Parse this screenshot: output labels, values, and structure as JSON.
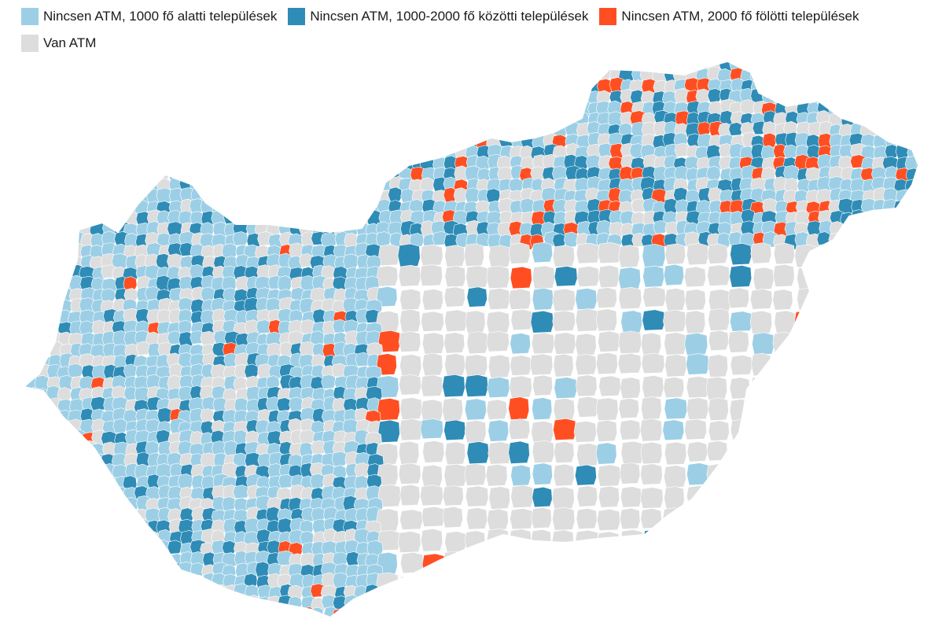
{
  "legend": {
    "items": [
      {
        "label": "Nincsen ATM, 1000 fő alatti települések",
        "color": "#9ccfe6"
      },
      {
        "label": "Nincsen ATM, 1000-2000 fő közötti települések",
        "color": "#2f8cb6"
      },
      {
        "label": "Nincsen ATM, 2000 fő fölötti települések",
        "color": "#ff4f22"
      },
      {
        "label": "Van ATM",
        "color": "#dddddd"
      }
    ]
  },
  "map": {
    "region": "Hungary",
    "border_color": "#ffffff"
  }
}
